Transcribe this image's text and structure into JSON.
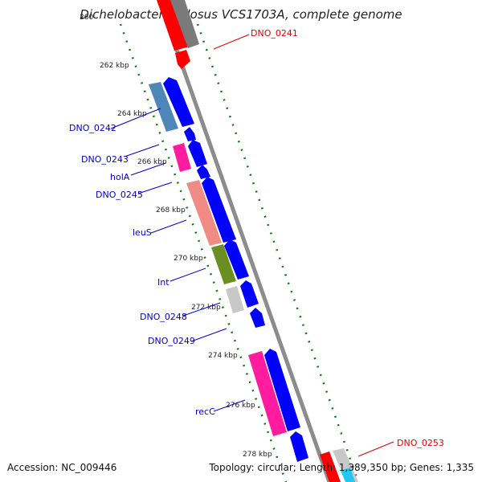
{
  "title": "Dichelobacter nodosus VCS1703A, complete genome",
  "footer": {
    "accession": "Accession: NC_009446",
    "summary": "Topology: circular; Length: 1,389,350 bp; Genes: 1,335"
  },
  "colors": {
    "backbone": "#8c8c8c",
    "tick_green": "#0a7a0a",
    "label_blue": "#0000c8",
    "label_red": "#e00000"
  },
  "ticks": [
    {
      "label": "260"
    },
    {
      "label": "262 kbp"
    },
    {
      "label": "264 kbp"
    },
    {
      "label": "266 kbp"
    },
    {
      "label": "268 kbp"
    },
    {
      "label": "270 kbp"
    },
    {
      "label": "272 kbp"
    },
    {
      "label": "274 kbp"
    },
    {
      "label": "276 kbp"
    },
    {
      "label": "278 kbp"
    }
  ],
  "gene_labels": [
    {
      "text": "DNO_0241",
      "color": "#e00000"
    },
    {
      "text": "DNO_0242",
      "color": "#0000c8"
    },
    {
      "text": "DNO_0243",
      "color": "#0000c8"
    },
    {
      "text": "holA",
      "color": "#0000c8"
    },
    {
      "text": "DNO_0245",
      "color": "#0000c8"
    },
    {
      "text": "leuS",
      "color": "#0000c8"
    },
    {
      "text": "Int",
      "color": "#0000c8"
    },
    {
      "text": "DNO_0248",
      "color": "#0000c8"
    },
    {
      "text": "DNO_0249",
      "color": "#0000c8"
    },
    {
      "text": "recC",
      "color": "#0000c8"
    },
    {
      "text": "DNO_0253",
      "color": "#e00000"
    }
  ],
  "feature_colors": {
    "cds": "#0000ff",
    "red": "#ff0000",
    "gray_dark": "#7a7a7a",
    "gray_light": "#c8c8c8",
    "steelblue": "#4f86b8",
    "pink": "#ff1c9e",
    "salmon": "#f08a84",
    "olive": "#6b8e23",
    "cyan": "#22c8f0"
  }
}
